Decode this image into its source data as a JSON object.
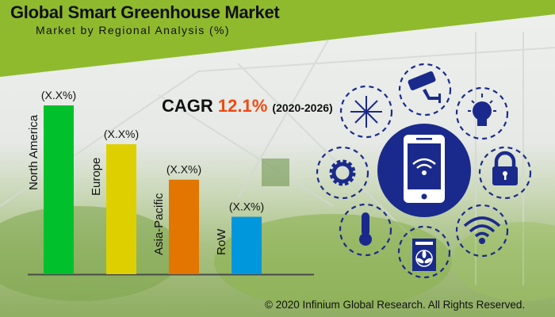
{
  "header": {
    "title": "Global Smart Greenhouse Market",
    "subtitle": "Market by Regional Analysis (%)"
  },
  "cagr": {
    "label": "CAGR",
    "value": "12.1%",
    "period": "(2020-2026)"
  },
  "chart_data": {
    "type": "bar",
    "title": "Global Smart Greenhouse Market",
    "subtitle": "Market by Regional Analysis (%)",
    "categories": [
      "North America",
      "Europe",
      "Asia-Pacific",
      "RoW"
    ],
    "values": [
      100,
      77,
      56,
      34
    ],
    "value_note": "relative bar heights; actual values not disclosed",
    "data_labels": [
      "(X.X%)",
      "(X.X%)",
      "(X.X%)",
      "(X.X%)"
    ],
    "colors": [
      "#00c12b",
      "#ded000",
      "#e27600",
      "#0097dd"
    ],
    "xlabel": "",
    "ylabel": "",
    "ylim": [
      0,
      100
    ],
    "grid": false
  },
  "icons": [
    "snowflake-icon",
    "security-camera-icon",
    "light-bulb-icon",
    "gear-icon",
    "smartphone-wifi-icon",
    "lock-icon",
    "thermometer-icon",
    "fan-icon",
    "wifi-icon"
  ],
  "accent_color": "#1a2a8c",
  "banner_color": "#8fba2e",
  "footer": {
    "copyright": "© 2020 Infinium Global Research. All Rights Reserved."
  }
}
